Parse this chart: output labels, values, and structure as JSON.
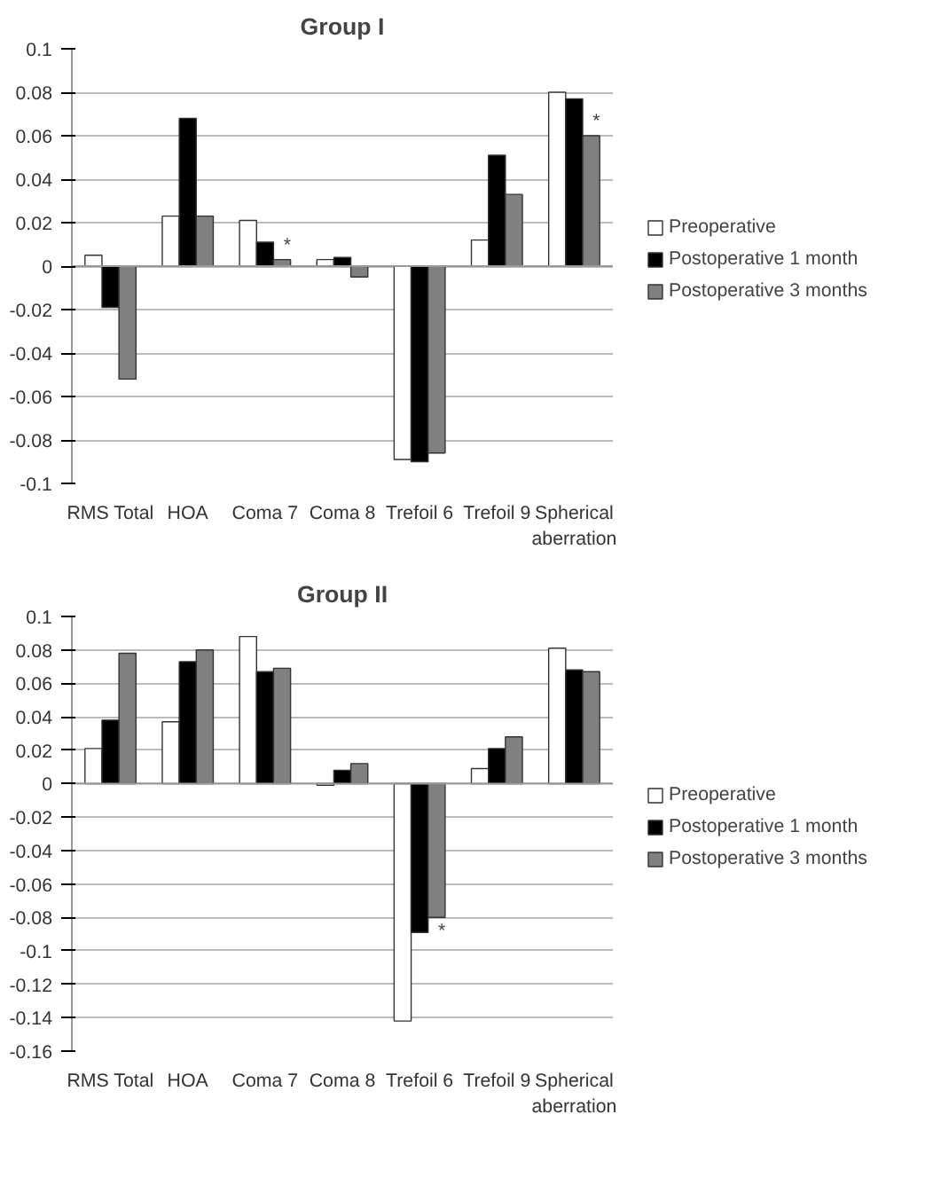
{
  "chart_data": [
    {
      "type": "bar",
      "title": "Group I",
      "categories": [
        "RMS Total",
        "HOA",
        "Coma 7",
        "Coma 8",
        "Trefoil 6",
        "Trefoil 9",
        "Spherical aberration"
      ],
      "series": [
        {
          "name": "Preoperative",
          "color": "#ffffff",
          "values": [
            0.005,
            0.023,
            0.021,
            0.003,
            -0.089,
            0.012,
            0.08
          ]
        },
        {
          "name": "Postoperative 1 month",
          "color": "#000000",
          "values": [
            -0.019,
            0.068,
            0.011,
            0.004,
            -0.09,
            0.051,
            0.077
          ]
        },
        {
          "name": "Postoperative 3 months",
          "color": "#808080",
          "values": [
            -0.052,
            0.023,
            0.003,
            -0.005,
            -0.086,
            0.033,
            0.06
          ]
        }
      ],
      "ylim": [
        -0.1,
        0.1
      ],
      "yticks": [
        -0.1,
        -0.08,
        -0.06,
        -0.04,
        -0.02,
        0,
        0.02,
        0.04,
        0.06,
        0.08,
        0.1
      ],
      "grid": "y",
      "legend": "right",
      "annotations": [
        {
          "text": "*",
          "x": "Coma 7",
          "y": 0.003
        },
        {
          "text": "*",
          "x": "Spherical aberration",
          "y": 0.06
        }
      ]
    },
    {
      "type": "bar",
      "title": "Group II",
      "categories": [
        "RMS Total",
        "HOA",
        "Coma 7",
        "Coma 8",
        "Trefoil 6",
        "Trefoil 9",
        "Spherical aberration"
      ],
      "series": [
        {
          "name": "Preoperative",
          "color": "#ffffff",
          "values": [
            0.021,
            0.037,
            0.088,
            -0.001,
            -0.142,
            0.009,
            0.081
          ]
        },
        {
          "name": "Postoperative 1 month",
          "color": "#000000",
          "values": [
            0.038,
            0.073,
            0.067,
            0.008,
            -0.089,
            0.021,
            0.068
          ]
        },
        {
          "name": "Postoperative 3 months",
          "color": "#808080",
          "values": [
            0.078,
            0.08,
            0.069,
            0.012,
            -0.08,
            0.028,
            0.067
          ]
        }
      ],
      "ylim": [
        -0.16,
        0.1
      ],
      "yticks": [
        -0.16,
        -0.14,
        -0.12,
        -0.1,
        -0.08,
        -0.06,
        -0.04,
        -0.02,
        0,
        0.02,
        0.04,
        0.06,
        0.08,
        0.1
      ],
      "grid": "y",
      "legend": "right",
      "annotations": [
        {
          "text": "*",
          "x": "Trefoil 6",
          "y": -0.08
        }
      ]
    }
  ]
}
